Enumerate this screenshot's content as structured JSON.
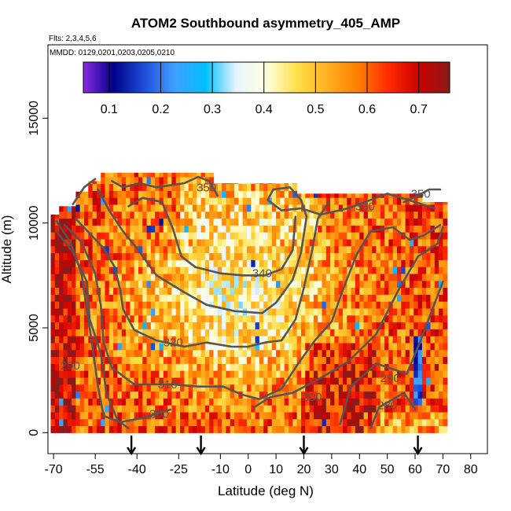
{
  "chart_data": {
    "type": "heatmap",
    "title": "ATOM2 Southbound asymmetry_405_AMP",
    "flights_label": "Flts: 2,3,4,5,6",
    "dates_label": "MMDD: 0129,0201,0203,0205,0210",
    "xlabel": "Latitude (deg N)",
    "ylabel": "Altitude (m)",
    "xlim": [
      -72,
      86
    ],
    "ylim": [
      -1000,
      18500
    ],
    "x_ticks": [
      -70,
      -55,
      -40,
      -25,
      -10,
      0,
      10,
      20,
      30,
      40,
      50,
      60,
      70,
      80
    ],
    "y_ticks": [
      0,
      5000,
      10000,
      15000
    ],
    "colorbar": {
      "range": [
        0.05,
        0.76
      ],
      "ticks": [
        0.1,
        0.2,
        0.3,
        0.4,
        0.5,
        0.6,
        0.7
      ],
      "tick_labels": [
        "0.1",
        "0.2",
        "0.3",
        "0.4",
        "0.5",
        "0.6",
        "0.7"
      ],
      "colors": [
        "#8a2be2",
        "#00008b",
        "#1e4fd8",
        "#3fa0ff",
        "#00bfff",
        "#e8f4ff",
        "#ffffe0",
        "#ffe04a",
        "#ffb020",
        "#ff7f00",
        "#ff2a00",
        "#cc0000",
        "#8b1a1a"
      ]
    },
    "heatmap_extent": {
      "lat_min": -71,
      "lat_max": 71,
      "alt_min": 0,
      "alt_max": 12400
    },
    "flight_markers_lat": [
      -42,
      -17,
      20,
      61
    ],
    "contours": [
      {
        "label": "280",
        "points": [
          [
            44,
            200
          ],
          [
            47,
            1200
          ],
          [
            56,
            1900
          ],
          [
            60,
            1100
          ]
        ],
        "label_at": [
          50,
          1300
        ]
      },
      {
        "label": "290",
        "points": [
          [
            -69,
            9600
          ],
          [
            -63,
            8600
          ],
          [
            -58,
            7200
          ],
          [
            -57,
            5400
          ],
          [
            -53,
            3800
          ],
          [
            -51,
            1900
          ],
          [
            -47,
            600
          ],
          [
            -43,
            200
          ]
        ],
        "label_at": [
          -64,
          3200
        ]
      },
      {
        "label": "290",
        "points": [
          [
            33,
            400
          ],
          [
            37,
            2200
          ],
          [
            46,
            3300
          ],
          [
            57,
            2800
          ],
          [
            62,
            4400
          ],
          [
            66,
            5800
          ],
          [
            70,
            7200
          ]
        ],
        "label_at": [
          51,
          2600
        ]
      },
      {
        "label": "300",
        "points": [
          [
            -69,
            10100
          ],
          [
            -64,
            9100
          ],
          [
            -60,
            7600
          ],
          [
            -58,
            5900
          ],
          [
            -56,
            4100
          ],
          [
            -54,
            2200
          ],
          [
            -52,
            800
          ],
          [
            -46,
            500
          ],
          [
            -38,
            700
          ],
          [
            -28,
            1100
          ]
        ],
        "label_at": [
          -32,
          900
        ]
      },
      {
        "label": "300",
        "points": [
          [
            2,
            1200
          ],
          [
            8,
            1700
          ],
          [
            16,
            1900
          ],
          [
            26,
            2600
          ],
          [
            36,
            3400
          ],
          [
            46,
            4700
          ],
          [
            54,
            6800
          ],
          [
            61,
            8400
          ],
          [
            68,
            9000
          ],
          [
            70,
            9800
          ]
        ],
        "label_at": [
          23,
          1700
        ]
      },
      {
        "label": "310",
        "points": [
          [
            -66,
            9900
          ],
          [
            -60,
            9100
          ],
          [
            -55,
            7600
          ],
          [
            -53,
            6100
          ],
          [
            -52,
            4300
          ],
          [
            -49,
            3100
          ],
          [
            -41,
            2300
          ],
          [
            -27,
            2300
          ],
          [
            -18,
            2200
          ],
          [
            -9,
            2200
          ],
          [
            -2,
            1800
          ],
          [
            4,
            1600
          ],
          [
            12,
            2100
          ],
          [
            18,
            3300
          ],
          [
            24,
            4400
          ],
          [
            30,
            5300
          ],
          [
            34,
            6800
          ],
          [
            39,
            8500
          ],
          [
            44,
            9600
          ],
          [
            52,
            9800
          ],
          [
            58,
            9200
          ],
          [
            63,
            9400
          ],
          [
            69,
            9900
          ]
        ],
        "label_at": [
          -29,
          2300
        ]
      },
      {
        "label": "320",
        "points": [
          [
            -62,
            10200
          ],
          [
            -57,
            9500
          ],
          [
            -52,
            8800
          ],
          [
            -48,
            7900
          ],
          [
            -46,
            6800
          ],
          [
            -45,
            5900
          ],
          [
            -41,
            4900
          ],
          [
            -33,
            4400
          ],
          [
            -23,
            4100
          ],
          [
            -15,
            4300
          ],
          [
            -6,
            4100
          ],
          [
            0,
            4100
          ],
          [
            6,
            4300
          ],
          [
            12,
            4400
          ],
          [
            17,
            5400
          ],
          [
            20,
            6900
          ],
          [
            23,
            8700
          ],
          [
            25,
            10200
          ],
          [
            29,
            11000
          ]
        ],
        "label_at": [
          -27,
          4300
        ]
      },
      {
        "label": "330",
        "points": [
          [
            -54,
            11600
          ],
          [
            -50,
            10600
          ],
          [
            -45,
            9600
          ],
          [
            -40,
            8800
          ],
          [
            -33,
            7500
          ],
          [
            -23,
            6700
          ],
          [
            -15,
            6100
          ],
          [
            -5,
            5800
          ],
          [
            5,
            5700
          ],
          [
            10,
            6200
          ],
          [
            16,
            7300
          ],
          [
            19,
            8600
          ],
          [
            21,
            10300
          ],
          [
            19,
            11100
          ],
          [
            15,
            11700
          ],
          [
            9,
            11600
          ],
          [
            7,
            11100
          ],
          [
            12,
            10600
          ],
          [
            19,
            10700
          ],
          [
            26,
            10400
          ],
          [
            36,
            10700
          ],
          [
            50,
            11400
          ],
          [
            60,
            11000
          ],
          [
            67,
            10700
          ]
        ],
        "label_at": [
          42,
          10800
        ]
      },
      {
        "label": "340",
        "points": [
          [
            -43,
            10800
          ],
          [
            -38,
            11200
          ],
          [
            -31,
            11000
          ],
          [
            -27,
            9700
          ],
          [
            -24,
            8400
          ],
          [
            -19,
            7900
          ],
          [
            -10,
            7600
          ],
          [
            -2,
            7500
          ],
          [
            6,
            7500
          ],
          [
            12,
            7800
          ],
          [
            16,
            8700
          ],
          [
            17,
            10300
          ]
        ],
        "label_at": [
          5,
          7600
        ]
      },
      {
        "label": "350",
        "points": [
          [
            -49,
            12000
          ],
          [
            -45,
            11700
          ],
          [
            -39,
            11900
          ],
          [
            -33,
            11700
          ],
          [
            -23,
            11900
          ],
          [
            -18,
            12200
          ],
          [
            -14,
            12000
          ],
          [
            -11,
            11300
          ]
        ],
        "label_at": [
          -15,
          11700
        ]
      },
      {
        "label": "350",
        "points": [
          [
            56,
            11000
          ],
          [
            61,
            11300
          ],
          [
            65,
            11600
          ],
          [
            69,
            11600
          ]
        ],
        "label_at": [
          62,
          11400
        ]
      },
      {
        "label": "",
        "points": [
          [
            -63,
            10900
          ],
          [
            -59,
            11700
          ],
          [
            -55,
            12100
          ]
        ],
        "label_at": [
          -58,
          11900
        ]
      }
    ]
  }
}
